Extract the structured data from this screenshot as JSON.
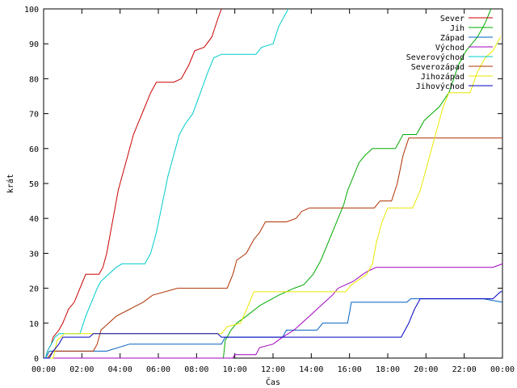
{
  "chart_data": {
    "type": "line",
    "xlabel": "Čas",
    "ylabel": "krát",
    "xlim": [
      0,
      24
    ],
    "ylim": [
      0,
      100
    ],
    "x_ticks": [
      {
        "value": 0,
        "label": "00:00"
      },
      {
        "value": 2,
        "label": "02:00"
      },
      {
        "value": 4,
        "label": "04:00"
      },
      {
        "value": 6,
        "label": "06:00"
      },
      {
        "value": 8,
        "label": "08:00"
      },
      {
        "value": 10,
        "label": "10:00"
      },
      {
        "value": 12,
        "label": "12:00"
      },
      {
        "value": 14,
        "label": "14:00"
      },
      {
        "value": 16,
        "label": "16:00"
      },
      {
        "value": 18,
        "label": "18:00"
      },
      {
        "value": 20,
        "label": "20:00"
      },
      {
        "value": 22,
        "label": "22:00"
      },
      {
        "value": 24,
        "label": "00:00"
      }
    ],
    "y_ticks": [
      0,
      10,
      20,
      30,
      40,
      50,
      60,
      70,
      80,
      90,
      100
    ],
    "grid": false,
    "legend_position": "top-right",
    "series": [
      {
        "name": "Sever",
        "color": "#cc0000",
        "points": [
          [
            0,
            0
          ],
          [
            0.1,
            0
          ],
          [
            0.2,
            2
          ],
          [
            0.4,
            4
          ],
          [
            0.5,
            6
          ],
          [
            0.8,
            8
          ],
          [
            1,
            10
          ],
          [
            1.3,
            14
          ],
          [
            1.6,
            16
          ],
          [
            1.9,
            20
          ],
          [
            2.2,
            24
          ],
          [
            2.9,
            24
          ],
          [
            3.1,
            26
          ],
          [
            3.3,
            30
          ],
          [
            3.5,
            36
          ],
          [
            3.7,
            42
          ],
          [
            3.9,
            48
          ],
          [
            4.1,
            52
          ],
          [
            4.3,
            56
          ],
          [
            4.5,
            60
          ],
          [
            4.7,
            64
          ],
          [
            5.0,
            68
          ],
          [
            5.3,
            72
          ],
          [
            5.6,
            76
          ],
          [
            5.9,
            79
          ],
          [
            6.8,
            79
          ],
          [
            7.2,
            80
          ],
          [
            7.6,
            84
          ],
          [
            7.9,
            88
          ],
          [
            8.4,
            89
          ],
          [
            8.8,
            92
          ],
          [
            9.1,
            97
          ],
          [
            9.3,
            100
          ]
        ]
      },
      {
        "name": "Jih",
        "color": "#00aa00",
        "points": [
          [
            0,
            0
          ],
          [
            9.4,
            0
          ],
          [
            9.5,
            5
          ],
          [
            9.8,
            8
          ],
          [
            10.1,
            10
          ],
          [
            10.6,
            12
          ],
          [
            11.3,
            15
          ],
          [
            12.3,
            18
          ],
          [
            13.1,
            20
          ],
          [
            13.6,
            21
          ],
          [
            14.1,
            24
          ],
          [
            14.5,
            28
          ],
          [
            14.8,
            32
          ],
          [
            15.1,
            36
          ],
          [
            15.4,
            40
          ],
          [
            15.7,
            44
          ],
          [
            15.9,
            48
          ],
          [
            16.2,
            52
          ],
          [
            16.5,
            56
          ],
          [
            16.8,
            58
          ],
          [
            17.2,
            60
          ],
          [
            18.4,
            60
          ],
          [
            18.8,
            64
          ],
          [
            19.5,
            64
          ],
          [
            19.9,
            68
          ],
          [
            20.3,
            70
          ],
          [
            20.7,
            72
          ],
          [
            21.2,
            76
          ],
          [
            21.7,
            84
          ],
          [
            22.1,
            88
          ],
          [
            22.7,
            92
          ],
          [
            23.1,
            96
          ],
          [
            23.4,
            100
          ]
        ]
      },
      {
        "name": "Západ",
        "color": "#0060c0",
        "points": [
          [
            0,
            0
          ],
          [
            0.1,
            0
          ],
          [
            0.3,
            2
          ],
          [
            3.3,
            2
          ],
          [
            4.5,
            4
          ],
          [
            9.3,
            4
          ],
          [
            9.5,
            6
          ],
          [
            12.5,
            6
          ],
          [
            12.7,
            8
          ],
          [
            14.3,
            8
          ],
          [
            14.6,
            10
          ],
          [
            15.9,
            10
          ],
          [
            16.1,
            16
          ],
          [
            18.3,
            16
          ],
          [
            19.0,
            16
          ],
          [
            19.2,
            17
          ],
          [
            23.0,
            17
          ],
          [
            24,
            16
          ]
        ]
      },
      {
        "name": "Východ",
        "color": "#a000c0",
        "points": [
          [
            0,
            0
          ],
          [
            9.9,
            0
          ],
          [
            10.0,
            1
          ],
          [
            11.1,
            1
          ],
          [
            11.3,
            3
          ],
          [
            12.0,
            4
          ],
          [
            12.5,
            6
          ],
          [
            13.1,
            8
          ],
          [
            13.5,
            10
          ],
          [
            13.9,
            12
          ],
          [
            14.3,
            14
          ],
          [
            14.7,
            16
          ],
          [
            15.1,
            18
          ],
          [
            15.4,
            20
          ],
          [
            15.8,
            21
          ],
          [
            16.2,
            22
          ],
          [
            16.7,
            24
          ],
          [
            17.0,
            25
          ],
          [
            17.4,
            26
          ],
          [
            23.5,
            26
          ],
          [
            24,
            27
          ]
        ]
      },
      {
        "name": "Severovýchod",
        "color": "#00cccc",
        "points": [
          [
            0,
            0
          ],
          [
            0.1,
            0
          ],
          [
            0.2,
            2
          ],
          [
            0.4,
            4
          ],
          [
            0.6,
            6
          ],
          [
            0.8,
            7
          ],
          [
            1.9,
            7
          ],
          [
            2.2,
            12
          ],
          [
            2.5,
            16
          ],
          [
            2.8,
            20
          ],
          [
            3.0,
            22
          ],
          [
            3.4,
            24
          ],
          [
            3.8,
            26
          ],
          [
            4.1,
            27
          ],
          [
            5.3,
            27
          ],
          [
            5.6,
            30
          ],
          [
            5.9,
            36
          ],
          [
            6.2,
            44
          ],
          [
            6.5,
            52
          ],
          [
            6.8,
            58
          ],
          [
            7.1,
            64
          ],
          [
            7.4,
            67
          ],
          [
            7.8,
            70
          ],
          [
            8.2,
            76
          ],
          [
            8.6,
            82
          ],
          [
            8.9,
            86
          ],
          [
            9.3,
            87
          ],
          [
            11.1,
            87
          ],
          [
            11.4,
            89
          ],
          [
            12.0,
            90
          ],
          [
            12.3,
            95
          ],
          [
            12.6,
            98
          ],
          [
            12.8,
            100
          ]
        ]
      },
      {
        "name": "Severozápad",
        "color": "#b03000",
        "points": [
          [
            0,
            0
          ],
          [
            0.2,
            0
          ],
          [
            0.5,
            2
          ],
          [
            2.6,
            2
          ],
          [
            2.8,
            4
          ],
          [
            3.0,
            8
          ],
          [
            3.4,
            10
          ],
          [
            3.8,
            12
          ],
          [
            4.5,
            14
          ],
          [
            5.2,
            16
          ],
          [
            5.7,
            18
          ],
          [
            7.0,
            20
          ],
          [
            9.6,
            20
          ],
          [
            9.9,
            24
          ],
          [
            10.1,
            28
          ],
          [
            10.6,
            30
          ],
          [
            11.0,
            34
          ],
          [
            11.3,
            36
          ],
          [
            11.6,
            39
          ],
          [
            12.7,
            39
          ],
          [
            13.2,
            40
          ],
          [
            13.5,
            42
          ],
          [
            13.9,
            43
          ],
          [
            17.3,
            43
          ],
          [
            17.6,
            45
          ],
          [
            18.2,
            45
          ],
          [
            18.5,
            50
          ],
          [
            18.8,
            58
          ],
          [
            19.1,
            63
          ],
          [
            24,
            63
          ]
        ]
      },
      {
        "name": "Jihozápad",
        "color": "#e8e800",
        "points": [
          [
            0,
            0
          ],
          [
            0.5,
            0
          ],
          [
            0.7,
            5
          ],
          [
            1.1,
            7
          ],
          [
            9.3,
            7
          ],
          [
            9.6,
            9
          ],
          [
            10.3,
            10
          ],
          [
            10.7,
            15
          ],
          [
            11.0,
            19
          ],
          [
            15.8,
            19
          ],
          [
            16.1,
            21
          ],
          [
            16.9,
            24
          ],
          [
            17.2,
            27
          ],
          [
            17.4,
            33
          ],
          [
            17.7,
            39
          ],
          [
            18.0,
            43
          ],
          [
            19.3,
            43
          ],
          [
            19.7,
            48
          ],
          [
            20.0,
            54
          ],
          [
            20.3,
            60
          ],
          [
            20.6,
            66
          ],
          [
            20.9,
            72
          ],
          [
            21.2,
            76
          ],
          [
            22.3,
            76
          ],
          [
            22.7,
            82
          ],
          [
            23.1,
            86
          ],
          [
            23.5,
            88
          ],
          [
            23.9,
            92
          ]
        ]
      },
      {
        "name": "Jihovýchod",
        "color": "#0000c0",
        "points": [
          [
            0,
            0
          ],
          [
            0.3,
            0
          ],
          [
            0.5,
            2
          ],
          [
            0.8,
            4
          ],
          [
            1.0,
            6
          ],
          [
            2.4,
            6
          ],
          [
            2.6,
            7
          ],
          [
            9.1,
            7
          ],
          [
            9.3,
            6
          ],
          [
            18.7,
            6
          ],
          [
            19.1,
            10
          ],
          [
            19.4,
            14
          ],
          [
            19.7,
            17
          ],
          [
            23.5,
            17
          ],
          [
            23.9,
            19
          ],
          [
            24,
            19
          ]
        ]
      }
    ]
  }
}
